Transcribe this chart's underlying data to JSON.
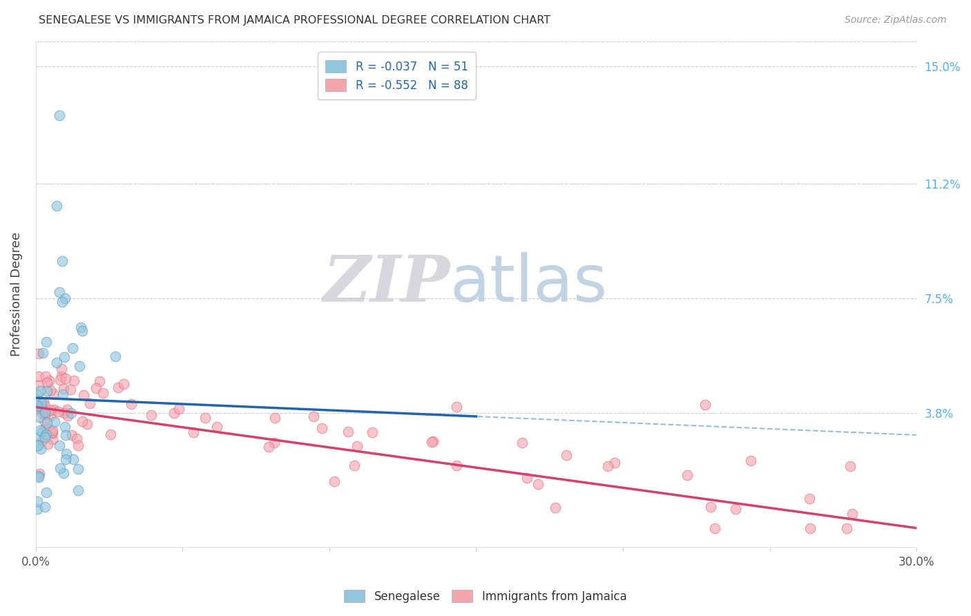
{
  "title": "SENEGALESE VS IMMIGRANTS FROM JAMAICA PROFESSIONAL DEGREE CORRELATION CHART",
  "source": "Source: ZipAtlas.com",
  "ylabel": "Professional Degree",
  "xmin": 0.0,
  "xmax": 0.3,
  "ymin": -0.005,
  "ymax": 0.158,
  "yticks": [
    0.038,
    0.075,
    0.112,
    0.15
  ],
  "ytick_labels": [
    "3.8%",
    "7.5%",
    "11.2%",
    "15.0%"
  ],
  "blue_R": -0.037,
  "blue_N": 51,
  "pink_R": -0.552,
  "pink_N": 88,
  "blue_color": "#92c5de",
  "pink_color": "#f4a6b0",
  "blue_line_color": "#2166ac",
  "pink_line_color": "#d6406a",
  "dashed_line_color": "#99bcd4",
  "legend_label_blue": "Senegalese",
  "legend_label_pink": "Immigrants from Jamaica",
  "watermark_zip": "ZIP",
  "watermark_atlas": "atlas",
  "watermark_zip_color": "#d0d0d8",
  "watermark_atlas_color": "#b8cce0"
}
